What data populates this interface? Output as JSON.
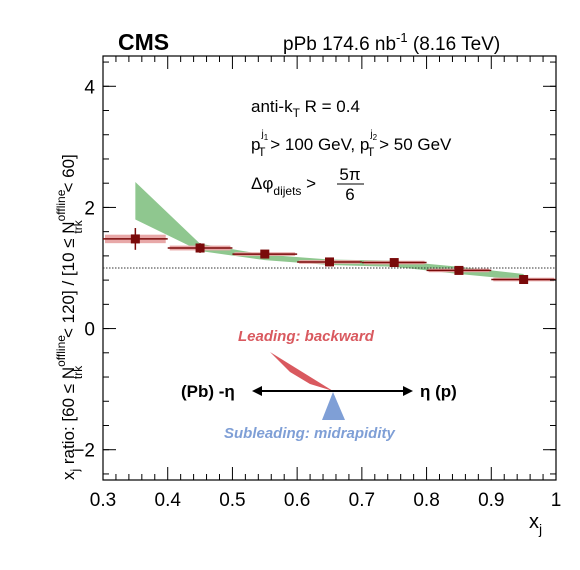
{
  "header": {
    "experiment": "CMS",
    "dataset_prefix": "pPb 174.6 nb",
    "dataset_exp": "-1",
    "dataset_suffix": " (8.16 TeV)"
  },
  "chart_data": {
    "type": "scatter",
    "xlim": [
      0.3,
      1.0
    ],
    "ylim": [
      -2.5,
      4.5
    ],
    "xticks": [
      "0.3",
      "0.4",
      "0.5",
      "0.6",
      "0.7",
      "0.8",
      "0.9",
      "1"
    ],
    "yticks": [
      "−2",
      "0",
      "2",
      "4"
    ],
    "xlabel": {
      "main": "x",
      "sub": "j"
    },
    "ylabel": {
      "p1": "x",
      "p1sub": "j",
      "p2": " ratio: [60 ≤ N",
      "p2sup": "offline",
      "p2sub": "trk",
      "p3": " < 120] / [10 ≤ N",
      "p3sup": "offline",
      "p3sub": "trk",
      "p4": " < 60]"
    },
    "reference_line": 1.0,
    "points": [
      {
        "x": 0.35,
        "y": 1.48,
        "xlo": 0.3,
        "xhi": 0.4,
        "yerr": 0.18,
        "syst": 0.07
      },
      {
        "x": 0.45,
        "y": 1.33,
        "xlo": 0.4,
        "xhi": 0.5,
        "yerr": 0.08,
        "syst": 0.04
      },
      {
        "x": 0.55,
        "y": 1.23,
        "xlo": 0.5,
        "xhi": 0.6,
        "yerr": 0.06,
        "syst": 0.03
      },
      {
        "x": 0.65,
        "y": 1.1,
        "xlo": 0.6,
        "xhi": 0.7,
        "yerr": 0.05,
        "syst": 0.03
      },
      {
        "x": 0.75,
        "y": 1.09,
        "xlo": 0.7,
        "xhi": 0.8,
        "yerr": 0.05,
        "syst": 0.03
      },
      {
        "x": 0.85,
        "y": 0.96,
        "xlo": 0.8,
        "xhi": 0.9,
        "yerr": 0.04,
        "syst": 0.03
      },
      {
        "x": 0.95,
        "y": 0.81,
        "xlo": 0.9,
        "xhi": 1.0,
        "yerr": 0.04,
        "syst": 0.03
      }
    ],
    "band": [
      {
        "x": 0.35,
        "lo": 1.8,
        "hi": 2.42
      },
      {
        "x": 0.45,
        "lo": 1.28,
        "hi": 1.4
      },
      {
        "x": 0.55,
        "lo": 1.13,
        "hi": 1.22
      },
      {
        "x": 0.65,
        "lo": 1.05,
        "hi": 1.14
      },
      {
        "x": 0.75,
        "lo": 1.02,
        "hi": 1.12
      },
      {
        "x": 0.85,
        "lo": 0.9,
        "hi": 1.02
      },
      {
        "x": 0.95,
        "lo": 0.8,
        "hi": 0.9
      }
    ],
    "colors": {
      "marker": "#7a0a0a",
      "syst": "#e8a8a8",
      "band": "#8fc78f",
      "leading": "#d9595f",
      "subleading": "#7f9fd6"
    },
    "annotations": {
      "algo_pre": "anti-k",
      "algo_sub": "T",
      "algo_post": " R = 0.4",
      "pt1_p": "p",
      "pt1_sup": "j",
      "pt1_supsub": "1",
      "pt1_sub": "T",
      "pt1_rest": " > 100 GeV, ",
      "pt2_p": "p",
      "pt2_sup": "j",
      "pt2_supsub": "2",
      "pt2_sub": "T",
      "pt2_rest": " > 50 GeV",
      "dphi_pre": "Δφ",
      "dphi_sub": "dijets",
      "dphi_gt": " >",
      "dphi_num": "5π",
      "dphi_den": "6"
    },
    "inset": {
      "leading": "Leading: backward",
      "subleading": "Subleading: midrapidity",
      "left": "(Pb) -η",
      "right": "η (p)"
    }
  }
}
